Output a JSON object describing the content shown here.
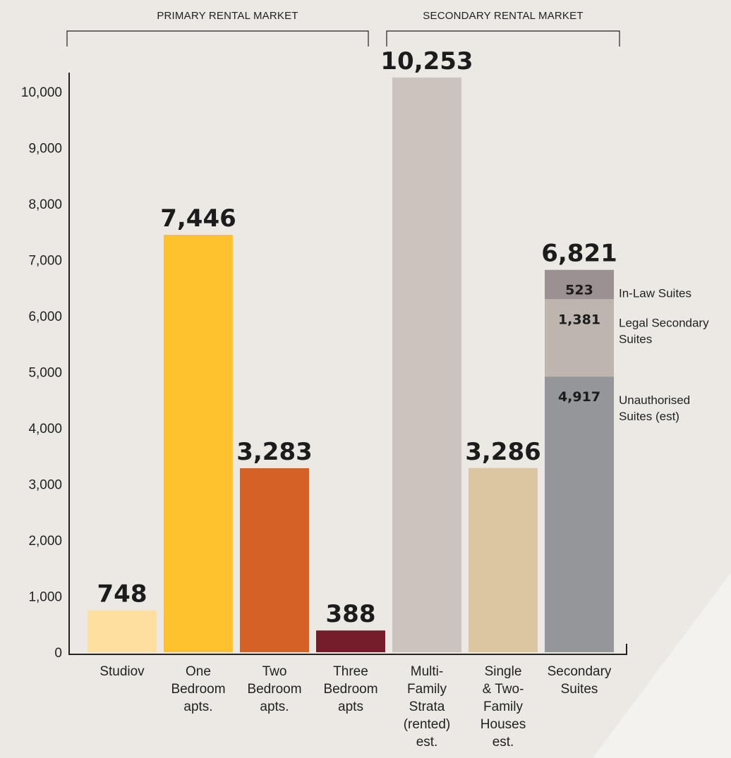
{
  "chart_data": {
    "type": "bar",
    "groups": [
      {
        "label": "PRIMARY RENTAL MARKET",
        "categories": [
          "Studiov",
          "One Bedroom apts.",
          "Two Bedroom apts.",
          "Three Bedroom apts"
        ]
      },
      {
        "label": "SECONDARY RENTAL MARKET",
        "categories": [
          "Multi-Family Strata (rented) est.",
          "Single & Two-Family Houses est.",
          "Secondary Suites"
        ]
      }
    ],
    "categories": [
      [
        "Studiov"
      ],
      [
        "One",
        "Bedroom",
        "apts."
      ],
      [
        "Two",
        "Bedroom",
        "apts."
      ],
      [
        "Three",
        "Bedroom",
        "apts"
      ],
      [
        "Multi-",
        "Family",
        "Strata",
        "(rented)",
        "est."
      ],
      [
        "Single",
        "& Two-",
        "Family",
        "Houses",
        "est."
      ],
      [
        "Secondary",
        "Suites"
      ]
    ],
    "values": [
      748,
      7446,
      3283,
      388,
      10253,
      3286,
      6821
    ],
    "value_labels": [
      "748",
      "7,446",
      "3,283",
      "388",
      "10,253",
      "3,286",
      "6,821"
    ],
    "colors": [
      "#fedf9f",
      "#fec22e",
      "#d56127",
      "#751d2b",
      "#cbc3bd",
      "#dcc6a2",
      "#95969a"
    ],
    "stacked_bar": {
      "category": "Secondary Suites",
      "segments": [
        {
          "name": "Unauthorised Suites (est)",
          "legend_lines": [
            "Unauthorised",
            "Suites (est)"
          ],
          "value": 4917,
          "label": "4,917",
          "color": "#95969a"
        },
        {
          "name": "Legal Secondary Suites",
          "legend_lines": [
            "Legal Secondary",
            "Suites"
          ],
          "value": 1381,
          "label": "1,381",
          "color": "#bdb5ae"
        },
        {
          "name": "In-Law Suites",
          "legend_lines": [
            "In-Law Suites"
          ],
          "value": 523,
          "label": "523",
          "color": "#9b9092"
        }
      ]
    },
    "ylim": [
      0,
      10000
    ],
    "yticks": [
      0,
      1000,
      2000,
      3000,
      4000,
      5000,
      6000,
      7000,
      8000,
      9000,
      10000
    ],
    "ytick_labels": [
      "0",
      "1,000",
      "2,000",
      "3,000",
      "4,000",
      "5,000",
      "6,000",
      "7,000",
      "8,000",
      "9,000",
      "10,000"
    ],
    "grid": false,
    "title": "",
    "xlabel": "",
    "ylabel": ""
  }
}
